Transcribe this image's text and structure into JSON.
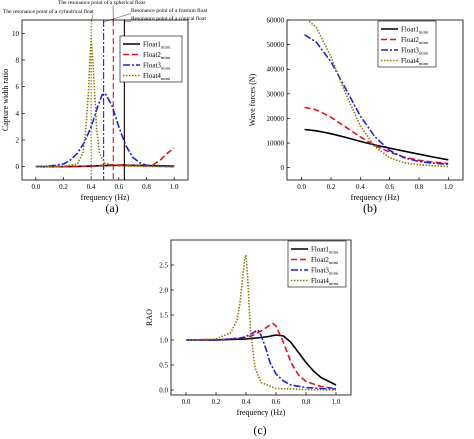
{
  "colors": {
    "float1": "#000000",
    "float2": "#e8111b",
    "float3": "#1f22d6",
    "float4": "#8b7a07"
  },
  "chart_data": [
    {
      "panel_label": "(a)",
      "type": "line",
      "xlabel": "frequency (Hz)",
      "ylabel": "Capture width ratio",
      "xlim": [
        -0.1,
        1.1
      ],
      "ylim": [
        -1,
        11
      ],
      "xticks": [
        "0.0",
        "0.2",
        "0.4",
        "0.6",
        "0.8",
        "1.0"
      ],
      "yticks": [
        "0",
        "2",
        "4",
        "6",
        "8",
        "10"
      ],
      "legend": "top-right",
      "series": [
        {
          "name": "Float1",
          "sub": "mimi",
          "x": [
            0.0,
            0.1,
            0.2,
            0.3,
            0.4,
            0.5,
            0.6,
            0.64,
            0.7,
            0.8,
            0.9,
            1.0
          ],
          "values": [
            0,
            0,
            0,
            0.02,
            0.04,
            0.08,
            0.1,
            0.12,
            0.1,
            0.08,
            0.06,
            0.05
          ]
        },
        {
          "name": "Float2",
          "sub": "mimi",
          "x": [
            0.0,
            0.2,
            0.4,
            0.5,
            0.56,
            0.62,
            0.7,
            0.8,
            0.85,
            0.9,
            0.95,
            1.0
          ],
          "values": [
            0,
            0,
            0.05,
            0.1,
            0.15,
            0.12,
            0.08,
            0.05,
            0.15,
            0.5,
            1.0,
            1.4
          ]
        },
        {
          "name": "Float3",
          "sub": "mimi",
          "x": [
            0.0,
            0.1,
            0.2,
            0.25,
            0.3,
            0.35,
            0.4,
            0.45,
            0.48,
            0.5,
            0.55,
            0.6,
            0.65,
            0.7,
            0.75,
            0.8,
            0.9,
            1.0
          ],
          "values": [
            0,
            0.05,
            0.2,
            0.5,
            1.0,
            1.8,
            3.0,
            4.6,
            5.4,
            5.5,
            4.6,
            3.0,
            1.6,
            0.7,
            0.3,
            0.1,
            0.03,
            0
          ]
        },
        {
          "name": "Float4",
          "sub": "mimi",
          "x": [
            0.0,
            0.2,
            0.3,
            0.34,
            0.36,
            0.38,
            0.39,
            0.4,
            0.41,
            0.42,
            0.44,
            0.46,
            0.5,
            0.6,
            0.8,
            1.0
          ],
          "values": [
            0,
            0.02,
            0.2,
            1.0,
            2.6,
            5.5,
            8.0,
            9.6,
            8.5,
            6.5,
            2.8,
            1.0,
            0.25,
            0.05,
            0.01,
            0
          ]
        }
      ],
      "annotations": [
        {
          "text": "The resonance point of a spherical float",
          "x": 0.56
        },
        {
          "text": "The resonance point of a cylindrical float",
          "x": 0.4
        },
        {
          "text": "Resonance point of a frustum float",
          "x": 0.49
        },
        {
          "text": "Resonance point of a conical float",
          "x": 0.64
        }
      ],
      "vlines": [
        {
          "series": "Float4",
          "x": 0.4
        },
        {
          "series": "Float3",
          "x": 0.49
        },
        {
          "series": "Float2",
          "x": 0.56
        },
        {
          "series": "Float1",
          "x": 0.64
        }
      ]
    },
    {
      "panel_label": "(b)",
      "type": "line",
      "xlabel": "frequency (Hz)",
      "ylabel": "Wave forces (N)",
      "xlim": [
        -0.1,
        1.1
      ],
      "ylim": [
        -5000,
        60000
      ],
      "xticks": [
        "0.0",
        "0.2",
        "0.4",
        "0.6",
        "0.8",
        "1.0"
      ],
      "yticks": [
        "0",
        "10000",
        "20000",
        "30000",
        "40000",
        "50000",
        "60000"
      ],
      "legend": "top-right",
      "series": [
        {
          "name": "Float1",
          "sub": "mimi",
          "x": [
            0.02,
            0.1,
            0.2,
            0.3,
            0.4,
            0.5,
            0.6,
            0.7,
            0.8,
            0.9,
            1.0
          ],
          "values": [
            15500,
            15000,
            13800,
            12300,
            10700,
            9200,
            7900,
            6700,
            5500,
            4300,
            3200
          ]
        },
        {
          "name": "Float2",
          "sub": "mimi",
          "x": [
            0.02,
            0.1,
            0.2,
            0.3,
            0.4,
            0.5,
            0.6,
            0.7,
            0.8,
            0.9,
            1.0
          ],
          "values": [
            24500,
            23500,
            20500,
            16500,
            12500,
            9000,
            6300,
            4300,
            3000,
            2200,
            1700
          ]
        },
        {
          "name": "Float3",
          "sub": "mimi",
          "x": [
            0.02,
            0.1,
            0.2,
            0.3,
            0.4,
            0.5,
            0.6,
            0.7,
            0.8,
            0.9,
            1.0
          ],
          "values": [
            54000,
            51000,
            43000,
            32000,
            21000,
            12500,
            7000,
            4000,
            2500,
            1800,
            1400
          ]
        },
        {
          "name": "Float4",
          "sub": "mimi",
          "x": [
            0.02,
            0.1,
            0.2,
            0.3,
            0.4,
            0.5,
            0.6,
            0.7,
            0.8,
            0.9,
            1.0
          ],
          "values": [
            61000,
            57000,
            45000,
            30000,
            17000,
            8500,
            4000,
            2000,
            1200,
            800,
            500
          ]
        }
      ]
    },
    {
      "panel_label": "(c)",
      "type": "line",
      "xlabel": "frequency (Hz)",
      "ylabel": "RAO",
      "xlim": [
        -0.1,
        1.1
      ],
      "ylim": [
        -0.1,
        3.0
      ],
      "xticks": [
        "0.0",
        "0.2",
        "0.4",
        "0.6",
        "0.8",
        "1.0"
      ],
      "yticks": [
        "0.0",
        "0.5",
        "1.0",
        "1.5",
        "2.0",
        "2.5"
      ],
      "legend": "top-right",
      "series": [
        {
          "name": "Float1",
          "sub": "mimi",
          "x": [
            0.0,
            0.2,
            0.4,
            0.5,
            0.55,
            0.6,
            0.65,
            0.7,
            0.75,
            0.8,
            0.85,
            0.9,
            1.0
          ],
          "values": [
            1.0,
            1.0,
            1.02,
            1.05,
            1.07,
            1.1,
            1.08,
            0.95,
            0.75,
            0.55,
            0.38,
            0.25,
            0.1
          ]
        },
        {
          "name": "Float2",
          "sub": "mimi",
          "x": [
            0.0,
            0.2,
            0.4,
            0.45,
            0.5,
            0.55,
            0.58,
            0.6,
            0.65,
            0.7,
            0.75,
            0.8,
            0.9,
            1.0
          ],
          "values": [
            1.0,
            1.0,
            1.05,
            1.1,
            1.18,
            1.28,
            1.33,
            1.28,
            0.95,
            0.55,
            0.3,
            0.17,
            0.07,
            0.03
          ]
        },
        {
          "name": "Float3",
          "sub": "mimi",
          "x": [
            0.0,
            0.2,
            0.35,
            0.4,
            0.45,
            0.48,
            0.5,
            0.53,
            0.56,
            0.6,
            0.65,
            0.7,
            0.8,
            0.9,
            1.0
          ],
          "values": [
            1.0,
            1.0,
            1.03,
            1.07,
            1.15,
            1.2,
            1.1,
            0.85,
            0.55,
            0.32,
            0.18,
            0.1,
            0.05,
            0.03,
            0.02
          ]
        },
        {
          "name": "Float4",
          "sub": "mimi",
          "x": [
            0.0,
            0.2,
            0.3,
            0.34,
            0.36,
            0.38,
            0.39,
            0.4,
            0.41,
            0.43,
            0.46,
            0.5,
            0.6,
            0.8,
            1.0
          ],
          "values": [
            1.0,
            1.02,
            1.15,
            1.4,
            1.75,
            2.3,
            2.6,
            2.7,
            2.3,
            1.2,
            0.45,
            0.15,
            0.03,
            0.01,
            0
          ]
        }
      ]
    }
  ]
}
